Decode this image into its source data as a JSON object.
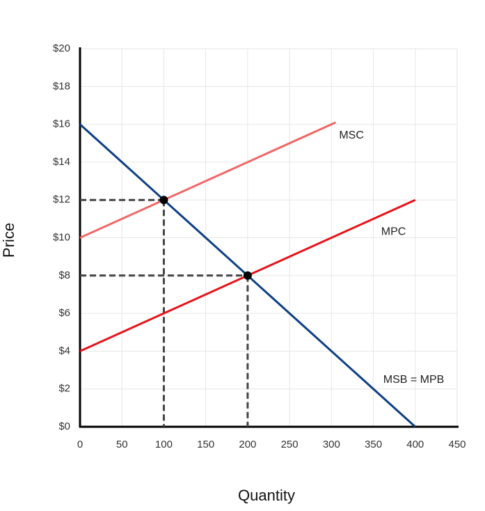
{
  "chart_data": {
    "type": "line",
    "xlabel": "Quantity",
    "ylabel": "Price",
    "series": [
      {
        "name": "MSB = MPB",
        "color": "#0e3f84",
        "x": [
          0,
          400
        ],
        "values": [
          16,
          0
        ]
      },
      {
        "name": "MSC",
        "color": "#f26666",
        "x": [
          0,
          305
        ],
        "values": [
          10,
          16.1
        ]
      },
      {
        "name": "MPC",
        "color": "#e8111a",
        "x": [
          0,
          400
        ],
        "values": [
          4,
          12
        ]
      }
    ],
    "points": [
      {
        "x": 100,
        "y": 12
      },
      {
        "x": 200,
        "y": 8
      }
    ],
    "xlim": [
      0,
      450
    ],
    "xticks": [
      0,
      50,
      100,
      150,
      200,
      250,
      300,
      350,
      400,
      450
    ],
    "ylim": [
      0,
      20
    ],
    "yticks": [
      {
        "value": 0,
        "label": "$0"
      },
      {
        "value": 2,
        "label": "$2"
      },
      {
        "value": 4,
        "label": "$4"
      },
      {
        "value": 6,
        "label": "$6"
      },
      {
        "value": 8,
        "label": "$8"
      },
      {
        "value": 10,
        "label": "$10"
      },
      {
        "value": 12,
        "label": "$12"
      },
      {
        "value": 14,
        "label": "$14"
      },
      {
        "value": 16,
        "label": "$16"
      },
      {
        "value": 18,
        "label": "$18"
      },
      {
        "value": 20,
        "label": "$20"
      }
    ],
    "grid": true
  }
}
